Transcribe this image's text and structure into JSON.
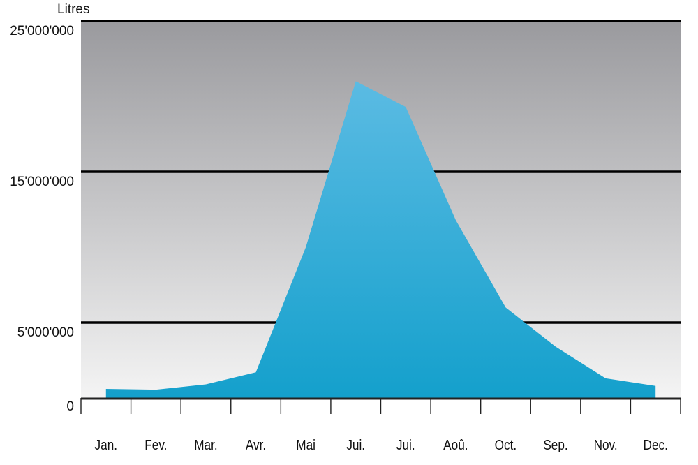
{
  "chart_data": {
    "type": "area",
    "title": "",
    "xlabel": "",
    "ylabel": "Litres",
    "ylim": [
      0,
      25000000
    ],
    "yticks": [
      {
        "value": 0,
        "label": "0"
      },
      {
        "value": 5000000,
        "label": "5'000'000"
      },
      {
        "value": 15000000,
        "label": "15'000'000"
      },
      {
        "value": 25000000,
        "label": "25'000'000"
      }
    ],
    "gridlines_at": [
      5000000,
      15000000,
      25000000
    ],
    "grid": true,
    "categories": [
      "Jan.",
      "Fev.",
      "Mar.",
      "Avr.",
      "Mai",
      "Jui.",
      "Jui.",
      "Aoû.",
      "Oct.",
      "Sep.",
      "Nov.",
      "Dec."
    ],
    "series": [
      {
        "values": [
          600000,
          550000,
          900000,
          1700000,
          10000000,
          21000000,
          19300000,
          11800000,
          6000000,
          3400000,
          1300000,
          800000
        ]
      }
    ],
    "colors": {
      "area_top": "#5bbbe3",
      "area_bottom": "#14a0cc",
      "background_top": "#9a9a9e",
      "background_bottom": "#f4f4f4",
      "gridline": "#000000",
      "axis": "#222222"
    }
  }
}
